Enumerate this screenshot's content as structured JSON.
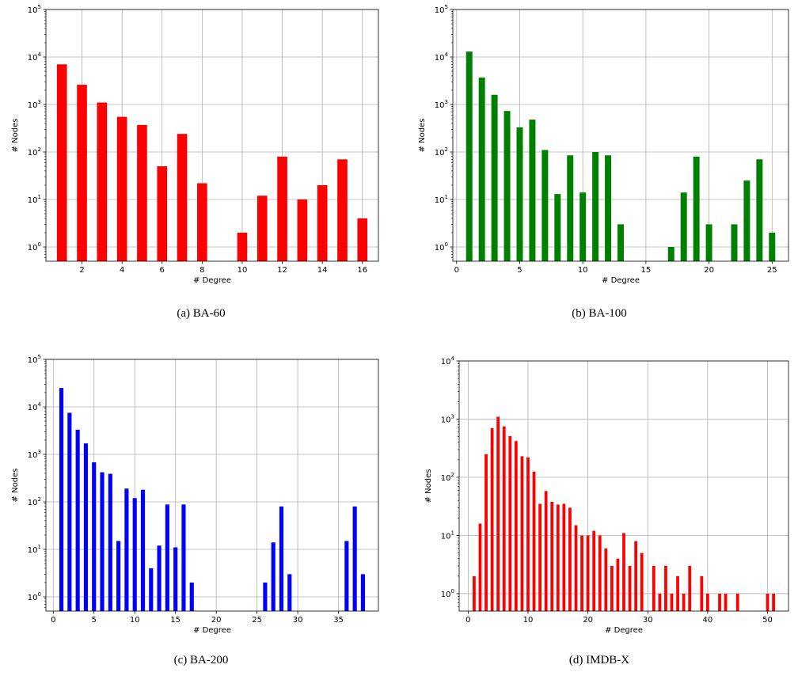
{
  "chart_data": [
    {
      "type": "bar",
      "caption": "(a)  BA-60",
      "xlabel": "# Degree",
      "ylabel": "# Nodes",
      "yscale": "log",
      "ylim_exp": [
        -0.3,
        5
      ],
      "xlim": [
        0.2,
        16.8
      ],
      "xticks": [
        2,
        4,
        6,
        8,
        10,
        12,
        14,
        16
      ],
      "yticks": [
        0,
        1,
        2,
        3,
        4,
        5
      ],
      "grid": true,
      "color": "#ff0000",
      "bar_width": 0.5,
      "x": [
        1,
        2,
        3,
        4,
        5,
        6,
        7,
        8,
        10,
        11,
        12,
        13,
        14,
        15,
        16
      ],
      "values": [
        7000,
        2600,
        1100,
        550,
        370,
        50,
        240,
        22,
        2,
        12,
        80,
        10,
        20,
        70,
        4
      ]
    },
    {
      "type": "bar",
      "caption": "(b)  BA-100",
      "xlabel": "# Degree",
      "ylabel": "# Nodes",
      "yscale": "log",
      "ylim_exp": [
        -0.3,
        5
      ],
      "xlim": [
        -0.3,
        26.3
      ],
      "xticks": [
        0,
        5,
        10,
        15,
        20,
        25
      ],
      "yticks": [
        0,
        1,
        2,
        3,
        4,
        5
      ],
      "grid": true,
      "color": "#008000",
      "bar_width": 0.5,
      "x": [
        1,
        2,
        3,
        4,
        5,
        6,
        7,
        8,
        9,
        10,
        11,
        12,
        13,
        17,
        18,
        19,
        20,
        22,
        23,
        24,
        25
      ],
      "values": [
        13000,
        3700,
        1600,
        730,
        330,
        480,
        110,
        13,
        85,
        14,
        100,
        85,
        3,
        1,
        14,
        80,
        3,
        3,
        25,
        70,
        2
      ]
    },
    {
      "type": "bar",
      "caption": "(c)  BA-200",
      "xlabel": "# Degree",
      "ylabel": "# Nodes",
      "yscale": "log",
      "ylim_exp": [
        -0.3,
        5
      ],
      "xlim": [
        -0.9,
        39.9
      ],
      "xticks": [
        0,
        5,
        10,
        15,
        20,
        25,
        30,
        35
      ],
      "yticks": [
        0,
        1,
        2,
        3,
        4,
        5
      ],
      "grid": true,
      "color": "#0000ff",
      "bar_width": 0.5,
      "x": [
        1,
        2,
        3,
        4,
        5,
        6,
        7,
        8,
        9,
        10,
        11,
        12,
        13,
        14,
        15,
        16,
        17,
        26,
        27,
        28,
        29,
        36,
        37,
        38
      ],
      "values": [
        25000,
        7500,
        3300,
        1700,
        680,
        420,
        390,
        15,
        190,
        120,
        180,
        4,
        12,
        88,
        11,
        88,
        2,
        2,
        14,
        80,
        3,
        15,
        80,
        3
      ]
    },
    {
      "type": "bar",
      "caption": "(d)  IMDB-X",
      "xlabel": "# Degree",
      "ylabel": "# Nodes",
      "yscale": "log",
      "ylim_exp": [
        -0.3,
        4
      ],
      "xlim": [
        -1.5,
        53.5
      ],
      "xticks": [
        0,
        10,
        20,
        30,
        40,
        50
      ],
      "yticks": [
        0,
        1,
        2,
        3,
        4
      ],
      "grid": true,
      "color": "#ff0000",
      "bar_width": 0.5,
      "x": [
        1,
        2,
        3,
        4,
        5,
        6,
        7,
        8,
        9,
        10,
        11,
        12,
        13,
        14,
        15,
        16,
        17,
        18,
        19,
        20,
        21,
        22,
        23,
        24,
        25,
        26,
        27,
        28,
        29,
        31,
        32,
        33,
        34,
        35,
        36,
        37,
        39,
        40,
        42,
        43,
        45,
        50,
        51
      ],
      "values": [
        2,
        16,
        250,
        700,
        1100,
        750,
        510,
        420,
        230,
        220,
        125,
        35,
        58,
        38,
        34,
        35,
        30,
        15,
        10,
        10,
        12,
        10,
        6,
        3,
        4,
        11,
        3,
        8,
        5,
        3,
        1,
        3,
        1,
        2,
        1,
        3,
        2,
        1,
        1,
        1,
        1,
        1,
        1
      ]
    }
  ]
}
